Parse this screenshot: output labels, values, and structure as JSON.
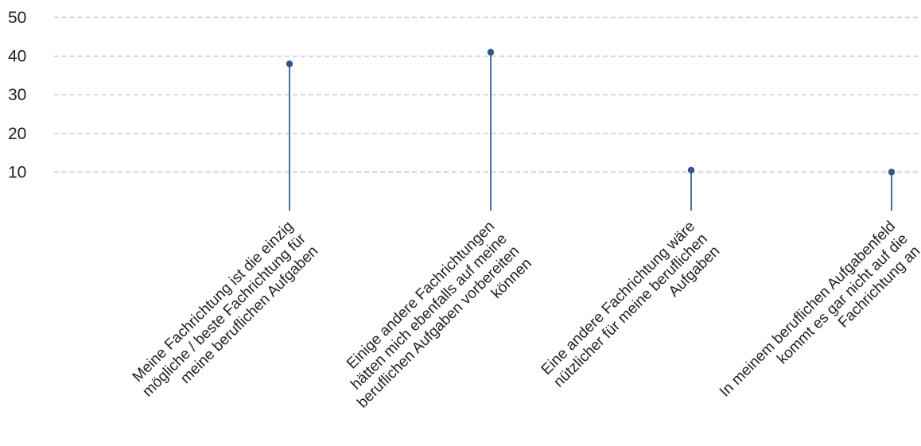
{
  "chart_data": {
    "type": "lollipop",
    "title": "",
    "xlabel": "",
    "ylabel": "",
    "ylim": [
      0,
      50
    ],
    "yticks": [
      10,
      20,
      30,
      40,
      50
    ],
    "grid": "horizontal dashed",
    "colors": {
      "stem": "#4a6fa5",
      "marker": "#34558b",
      "grid": "#bdbdbd",
      "text": "#222222"
    },
    "categories": [
      [
        "Meine Fachrichtung ist die einzig",
        "mögliche / beste Fachrichtung für",
        "meine beruflichen Aufgaben"
      ],
      [
        "Einige andere Fachrichtungen",
        "hätten mich ebenfalls auf meine",
        "beruflichen Aufgaben vorbereiten",
        "können"
      ],
      [
        "Eine andere Fachrichtung wäre",
        "nützlicher für meine beruflichen",
        "Aufgaben"
      ],
      [
        "In meinem beruflichen Aufgabenfeld",
        "kommt es gar nicht auf die",
        "Fachrichtung an"
      ]
    ],
    "values": [
      38,
      41,
      10.5,
      10
    ]
  }
}
